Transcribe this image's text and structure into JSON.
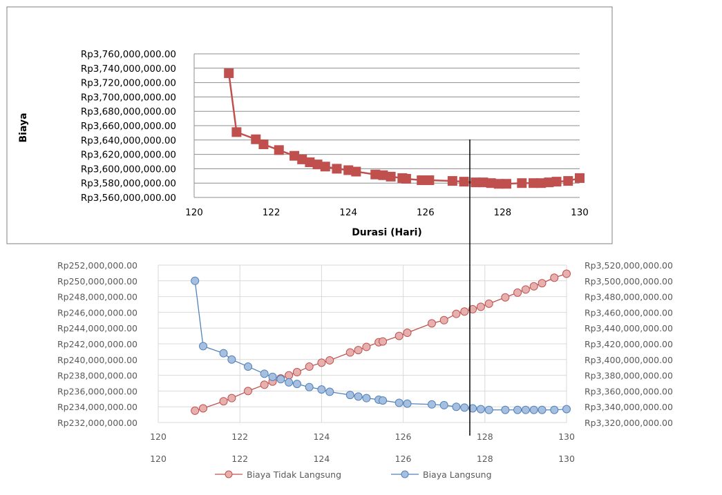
{
  "chart_data": [
    {
      "type": "scatter",
      "title": "",
      "xlabel": "Durasi (Hari)",
      "ylabel": "Biaya",
      "xlim": [
        120,
        130
      ],
      "ylim": [
        3560000000,
        3760000000
      ],
      "x_ticks": [
        "120",
        "122",
        "124",
        "126",
        "128",
        "130"
      ],
      "y_ticks": [
        "Rp3,560,000,000.00",
        "Rp3,580,000,000.00",
        "Rp3,600,000,000.00",
        "Rp3,620,000,000.00",
        "Rp3,640,000,000.00",
        "Rp3,660,000,000.00",
        "Rp3,680,000,000.00",
        "Rp3,700,000,000.00",
        "Rp3,720,000,000.00",
        "Rp3,740,000,000.00",
        "Rp3,760,000,000.00"
      ],
      "grid": true,
      "marker": "square",
      "color": "#C0504D",
      "series": [
        {
          "x": [
            120.9,
            121.1,
            121.6,
            121.8,
            122.2,
            122.6,
            122.8,
            123.0,
            123.2,
            123.4,
            123.7,
            124.0,
            124.2,
            124.7,
            124.9,
            125.1,
            125.4,
            125.5,
            125.9,
            126.1,
            126.7,
            127.0,
            127.3,
            127.5,
            127.7,
            127.9,
            128.1,
            128.5,
            128.8,
            129.0,
            129.2,
            129.4,
            129.7,
            130.0
          ],
          "y": [
            3733000000,
            3651000000,
            3641000000,
            3634000000,
            3626000000,
            3618000000,
            3613000000,
            3609000000,
            3606000000,
            3603000000,
            3600000000,
            3598000000,
            3596000000,
            3592000000,
            3591000000,
            3589000000,
            3587000000,
            3586000000,
            3584000000,
            3584000000,
            3583000000,
            3582000000,
            3581000000,
            3581000000,
            3580000000,
            3579000000,
            3579000000,
            3580000000,
            3580000000,
            3580000000,
            3581000000,
            3582000000,
            3583000000,
            3587000000
          ]
        }
      ]
    },
    {
      "type": "line",
      "title": "",
      "xlim": [
        120,
        130
      ],
      "x_ticks": [
        "120",
        "122",
        "124",
        "126",
        "128",
        "130"
      ],
      "x_ticks_2": [
        "120",
        "122",
        "124",
        "126",
        "128",
        "130"
      ],
      "y_left_lim": [
        232000000,
        252000000
      ],
      "y_right_lim": [
        3320000000,
        3520000000
      ],
      "y_left_ticks": [
        "Rp232,000,000.00",
        "Rp234,000,000.00",
        "Rp236,000,000.00",
        "Rp238,000,000.00",
        "Rp240,000,000.00",
        "Rp242,000,000.00",
        "Rp244,000,000.00",
        "Rp246,000,000.00",
        "Rp248,000,000.00",
        "Rp250,000,000.00",
        "Rp252,000,000.00"
      ],
      "y_right_ticks": [
        "Rp3,320,000,000.00",
        "Rp3,340,000,000.00",
        "Rp3,360,000,000.00",
        "Rp3,380,000,000.00",
        "Rp3,400,000,000.00",
        "Rp3,420,000,000.00",
        "Rp3,440,000,000.00",
        "Rp3,460,000,000.00",
        "Rp3,480,000,000.00",
        "Rp3,500,000,000.00",
        "Rp3,520,000,000.00"
      ],
      "grid": true,
      "legend": "bottom",
      "series": [
        {
          "name": "Biaya Tidak Langsung",
          "axis": "left",
          "color": "#C0504D",
          "marker_fill": "#E6B0AF",
          "x": [
            120.9,
            121.1,
            121.6,
            121.8,
            122.2,
            122.6,
            122.8,
            123.0,
            123.2,
            123.4,
            123.7,
            124.0,
            124.2,
            124.7,
            124.9,
            125.1,
            125.4,
            125.5,
            125.9,
            126.1,
            126.7,
            127.0,
            127.3,
            127.5,
            127.7,
            127.9,
            128.1,
            128.5,
            128.8,
            129.0,
            129.2,
            129.4,
            129.7,
            130.0
          ],
          "y": [
            233500000,
            233800000,
            234700000,
            235100000,
            236000000,
            236800000,
            237200000,
            237600000,
            238000000,
            238400000,
            239100000,
            239600000,
            239900000,
            240900000,
            241200000,
            241600000,
            242200000,
            242300000,
            243000000,
            243400000,
            244600000,
            245000000,
            245800000,
            246100000,
            246400000,
            246700000,
            247100000,
            247900000,
            248500000,
            248900000,
            249300000,
            249700000,
            250400000,
            250900000
          ]
        },
        {
          "name": "Biaya Langsung",
          "axis": "right",
          "color": "#4F81BD",
          "marker_fill": "#A7BFDE",
          "x": [
            120.9,
            121.1,
            121.6,
            121.8,
            122.2,
            122.6,
            122.8,
            123.0,
            123.2,
            123.4,
            123.7,
            124.0,
            124.2,
            124.7,
            124.9,
            125.1,
            125.4,
            125.5,
            125.9,
            126.1,
            126.7,
            127.0,
            127.3,
            127.5,
            127.7,
            127.9,
            128.1,
            128.5,
            128.8,
            129.0,
            129.2,
            129.4,
            129.7,
            130.0
          ],
          "y": [
            3500000000,
            3417000000,
            3408000000,
            3400000000,
            3391000000,
            3382000000,
            3378000000,
            3375000000,
            3371000000,
            3369000000,
            3365000000,
            3362000000,
            3359000000,
            3355000000,
            3353000000,
            3351000000,
            3349000000,
            3348000000,
            3345000000,
            3344000000,
            3343000000,
            3342000000,
            3340000000,
            3339000000,
            3338000000,
            3337000000,
            3336000000,
            3336000000,
            3336000000,
            3336000000,
            3336000000,
            3336000000,
            3336000000,
            3337000000
          ]
        }
      ]
    }
  ]
}
